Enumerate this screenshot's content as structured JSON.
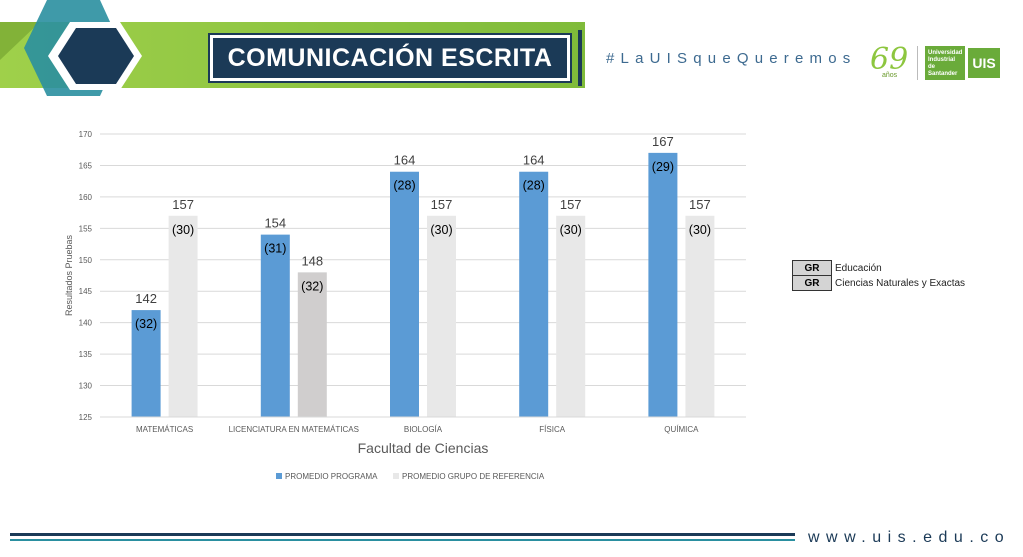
{
  "header": {
    "title": "COMUNICACIÓN ESCRITA",
    "hashtag": "#LaUISqueQueremos",
    "logo_anniversary_number": "69",
    "logo_anniversary_text": "años",
    "logo_university_text": "Universidad Industrial de Santander",
    "logo_mark_text": "UIS"
  },
  "footer": {
    "website": "www.uis.edu.co"
  },
  "group_legend": {
    "rows": [
      {
        "code": "GR",
        "label": "Educación"
      },
      {
        "code": "GR",
        "label": "Ciencias Naturales y Exactas"
      }
    ]
  },
  "colors": {
    "programa": "#5b9bd5",
    "referencia_light": "#e8e8e8",
    "referencia_dark": "#d0cece",
    "header_green": "#8dc63f",
    "header_teal": "#2a8fa0",
    "navy": "#1b3a57"
  },
  "chart_data": {
    "type": "bar",
    "categories": [
      "MATEMÁTICAS",
      "LICENCIATURA EN MATEMÁTICAS",
      "BIOLOGÍA",
      "FÍSICA",
      "QUÍMICA"
    ],
    "series": [
      {
        "name": "PROMEDIO PROGRAMA",
        "values": [
          142,
          154,
          164,
          164,
          167
        ],
        "annotations": [
          "(32)",
          "(31)",
          "(28)",
          "(28)",
          "(29)"
        ]
      },
      {
        "name": "PROMEDIO GRUPO DE REFERENCIA",
        "values": [
          157,
          148,
          157,
          157,
          157
        ],
        "annotations": [
          "(30)",
          "(32)",
          "(30)",
          "(30)",
          "(30)"
        ]
      }
    ],
    "xlabel": "Facultad de Ciencias",
    "ylabel": "Resultados Pruebas",
    "ylim": [
      125,
      170
    ],
    "yticks": [
      125,
      130,
      135,
      140,
      145,
      150,
      155,
      160,
      165,
      170
    ],
    "grid": true,
    "legend_position": "bottom"
  }
}
